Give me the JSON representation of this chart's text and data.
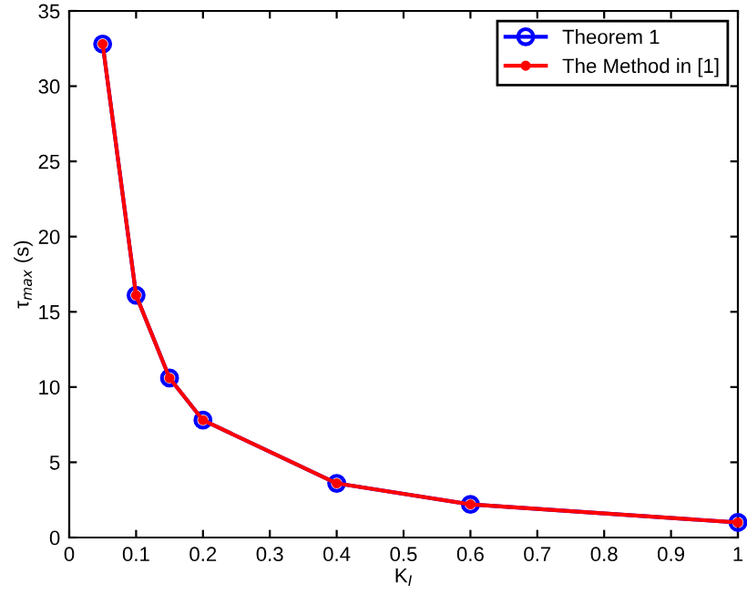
{
  "chart_data": {
    "type": "line",
    "xlabel": "K$_{I}$",
    "ylabel": "τ$_{max}$ (s)",
    "x": [
      0.05,
      0.1,
      0.15,
      0.2,
      0.4,
      0.6,
      1
    ],
    "series": [
      {
        "name": "Theorem 1",
        "color": "#0000ff",
        "marker": "circle",
        "values": [
          32.8,
          16.1,
          10.6,
          7.8,
          3.6,
          2.2,
          1.0
        ]
      },
      {
        "name": "The Method in [1]",
        "color": "#ff0000",
        "marker": "point",
        "values": [
          32.8,
          16.1,
          10.6,
          7.8,
          3.6,
          2.2,
          1.0
        ]
      }
    ],
    "xlim": [
      0,
      1
    ],
    "xticks": [
      0,
      0.1,
      0.2,
      0.3,
      0.4,
      0.5,
      0.6,
      0.7,
      0.8,
      0.9,
      1
    ],
    "ylim": [
      0,
      35
    ],
    "yticks": [
      0,
      5,
      10,
      15,
      20,
      25,
      30,
      35
    ],
    "grid": false,
    "legend": "top right",
    "line_style": "solid"
  }
}
